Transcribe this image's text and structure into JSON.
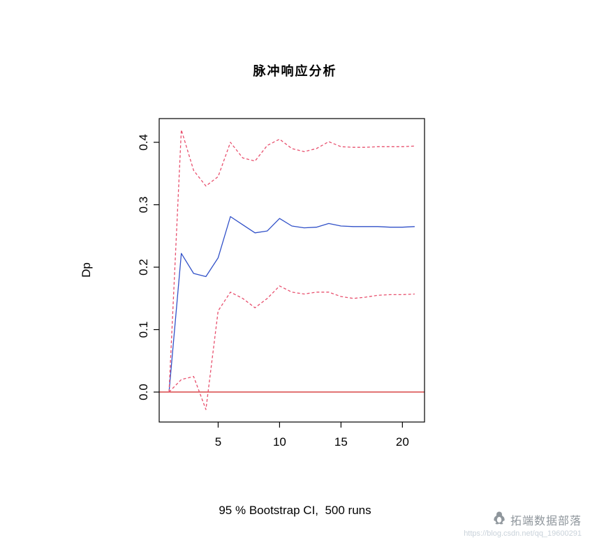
{
  "watermark": {
    "name": "拓端数据部落",
    "url": "https://blog.csdn.net/qq_19600291"
  },
  "chart_data": {
    "type": "line",
    "title": "脉冲响应分析",
    "xlabel": "",
    "ylabel": "Dp",
    "caption": "95 % Bootstrap CI,  500 runs",
    "x": [
      1,
      2,
      3,
      4,
      5,
      6,
      7,
      8,
      9,
      10,
      11,
      12,
      13,
      14,
      15,
      16,
      17,
      18,
      19,
      20,
      21
    ],
    "series": [
      {
        "name": "impulse-response",
        "color": "#3050c8",
        "style": "solid",
        "values": [
          0.0,
          0.222,
          0.19,
          0.185,
          0.215,
          0.281,
          0.268,
          0.255,
          0.258,
          0.278,
          0.266,
          0.263,
          0.264,
          0.27,
          0.266,
          0.265,
          0.265,
          0.265,
          0.264,
          0.264,
          0.265
        ]
      },
      {
        "name": "ci-upper",
        "color": "#e8506e",
        "style": "dashed",
        "values": [
          0.0,
          0.42,
          0.355,
          0.33,
          0.345,
          0.4,
          0.375,
          0.37,
          0.395,
          0.405,
          0.39,
          0.385,
          0.39,
          0.401,
          0.393,
          0.392,
          0.392,
          0.393,
          0.393,
          0.393,
          0.394
        ]
      },
      {
        "name": "ci-lower",
        "color": "#e8506e",
        "style": "dashed",
        "values": [
          0.0,
          0.02,
          0.025,
          -0.028,
          0.13,
          0.16,
          0.15,
          0.135,
          0.15,
          0.17,
          0.16,
          0.157,
          0.16,
          0.16,
          0.153,
          0.15,
          0.152,
          0.155,
          0.156,
          0.156,
          0.157
        ]
      }
    ],
    "zero_line": {
      "y": 0,
      "color": "#d02020"
    },
    "xticks": [
      5,
      10,
      15,
      20
    ],
    "yticks": [
      0.0,
      0.1,
      0.2,
      0.3,
      0.4
    ],
    "xlim": [
      0.2,
      21.8
    ],
    "ylim": [
      -0.048,
      0.438
    ],
    "grid": false,
    "legend": "none"
  }
}
